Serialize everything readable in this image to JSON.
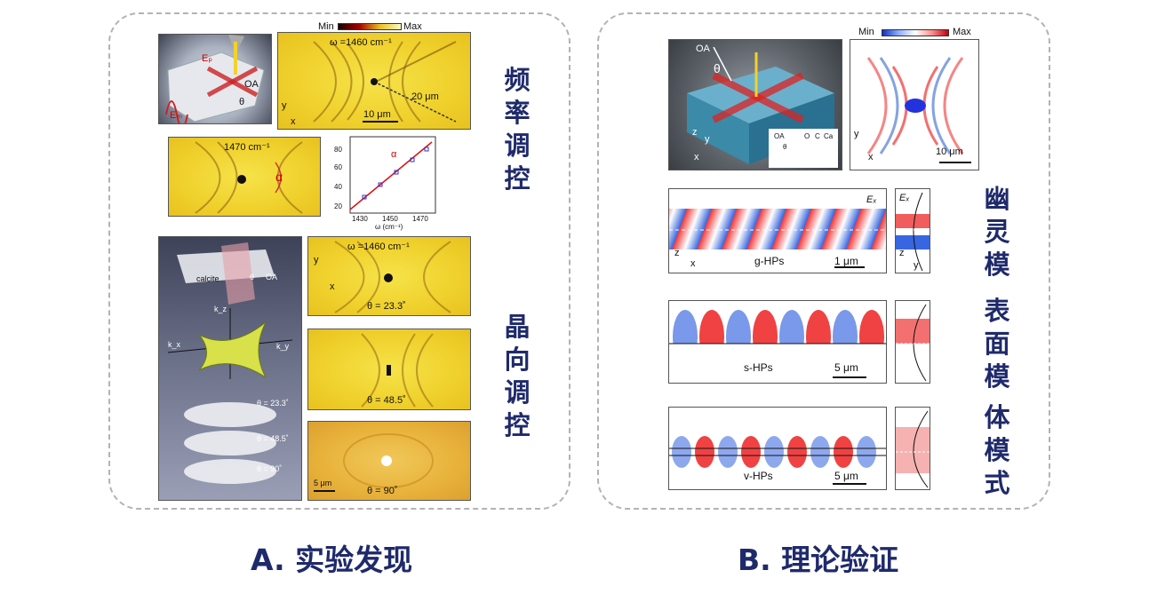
{
  "panel_a": {
    "heading": "A. 实验发现",
    "side_label_top": "频率调控",
    "side_label_bottom": "晶向调控",
    "colorbar": {
      "min": "Min",
      "max": "Max"
    },
    "image_1": {
      "omega": "ω =1460 cm⁻¹",
      "scale": "10 μm",
      "path": "20 μm",
      "axes": [
        "y",
        "x"
      ]
    },
    "image_2": {
      "omega": "1470 cm⁻¹",
      "angle": "α"
    },
    "inset_plot": {
      "label": "α",
      "yticks": [
        "20",
        "40",
        "60",
        "80"
      ],
      "xticks": [
        "1430",
        "1450",
        "1470"
      ],
      "xlabel": "ω (cm⁻¹)"
    },
    "schematic_3d": {
      "labels": [
        "Eₚ",
        "OA",
        "θ",
        "Eₘ"
      ]
    },
    "schematic_bottom": {
      "labels": [
        "calcite",
        "OA",
        "θ",
        "k_z",
        "k_x",
        "k_y",
        "θ = 23.3˚",
        "θ = 48.5˚",
        "θ =  90˚"
      ]
    },
    "image_3": {
      "omega": "ω =1460 cm⁻¹",
      "theta": "θ = 23.3˚",
      "axes": [
        "y",
        "x"
      ]
    },
    "image_4": {
      "theta": "θ = 48.5˚"
    },
    "image_5": {
      "theta": "θ = 90˚",
      "scale": "5 μm"
    }
  },
  "panel_b": {
    "heading": "B. 理论验证",
    "colorbar": {
      "min": "Min",
      "max": "Max"
    },
    "crystal_3d": {
      "labels": [
        "OA",
        "θ",
        "z",
        "y",
        "x"
      ],
      "inset": [
        "OA",
        "θ",
        "O",
        "C",
        "Ca"
      ]
    },
    "field_map": {
      "axes": [
        "y",
        "x"
      ],
      "scale": "10 μm"
    },
    "modes": [
      {
        "title": "幽灵模",
        "name": "g-HPs",
        "scale": "1 μm",
        "field": "Eₓ",
        "axes": [
          "z",
          "x"
        ],
        "profile_axes": [
          "z",
          "y"
        ]
      },
      {
        "title": "表面模",
        "name": "s-HPs",
        "scale": "5 μm"
      },
      {
        "title": "体模式",
        "name": "v-HPs",
        "scale": "5 μm"
      }
    ]
  }
}
